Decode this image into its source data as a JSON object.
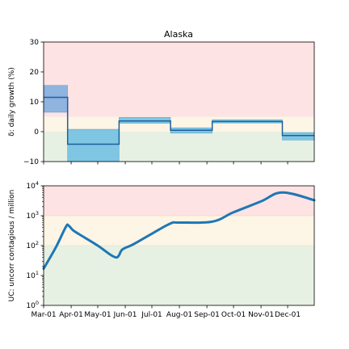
{
  "colors": {
    "band_red": "#fde3e3",
    "band_yellow": "#fdf5e6",
    "band_green": "#e7f1e3",
    "line": "#1f77b4",
    "interval_fill": "#7ec6e2",
    "interval_edge": "#3b83c4"
  },
  "chart_data": [
    {
      "type": "line",
      "title": "Alaska",
      "ylabel": "δ: daily growth (%)",
      "ylim": [
        -10,
        30
      ],
      "yticks": [
        -10,
        0,
        10,
        20,
        30
      ],
      "ytick_labels": [
        "−10",
        "0",
        "10",
        "20",
        "30"
      ],
      "bands": [
        {
          "from": 5,
          "to": 30,
          "color": "band_red"
        },
        {
          "from": 0,
          "to": 5,
          "color": "band_yellow"
        },
        {
          "from": -10,
          "to": 0,
          "color": "band_green"
        }
      ],
      "x_domain": [
        "2020-03-01",
        "2020-12-31"
      ],
      "segments": [
        {
          "x0": "2020-03-01",
          "x1": "2020-03-28",
          "value": 11.5,
          "low": 6.5,
          "high": 15.5
        },
        {
          "x0": "2020-03-28",
          "x1": "2020-05-25",
          "value": -4.2,
          "low": -10,
          "high": 0.8
        },
        {
          "x0": "2020-05-25",
          "x1": "2020-07-22",
          "value": 3.6,
          "low": 2.8,
          "high": 4.8
        },
        {
          "x0": "2020-07-22",
          "x1": "2020-09-07",
          "value": 0.5,
          "low": -0.5,
          "high": 1.3
        },
        {
          "x0": "2020-09-07",
          "x1": "2020-11-25",
          "value": 3.4,
          "low": 2.9,
          "high": 4.0
        },
        {
          "x0": "2020-11-25",
          "x1": "2020-12-31",
          "value": -1.3,
          "low": -2.8,
          "high": -0.3
        }
      ]
    },
    {
      "type": "line",
      "scale": "log",
      "ylabel": "UC: uncorr contagious / million",
      "ylim": [
        1,
        10000
      ],
      "yticks": [
        1,
        10,
        100,
        1000,
        10000
      ],
      "ytick_labels": [
        [
          "10",
          "0"
        ],
        [
          "10",
          "1"
        ],
        [
          "10",
          "2"
        ],
        [
          "10",
          "3"
        ],
        [
          "10",
          "4"
        ]
      ],
      "bands": [
        {
          "from": 1000,
          "to": 10000,
          "color": "band_red"
        },
        {
          "from": 100,
          "to": 1000,
          "color": "band_yellow"
        },
        {
          "from": 1,
          "to": 100,
          "color": "band_green"
        }
      ],
      "x_domain": [
        "2020-03-01",
        "2020-12-31"
      ],
      "xticks": [
        "2020-03-01",
        "2020-04-01",
        "2020-05-01",
        "2020-06-01",
        "2020-07-01",
        "2020-08-01",
        "2020-09-01",
        "2020-10-01",
        "2020-11-01",
        "2020-12-01"
      ],
      "xtick_labels": [
        "Mar-01",
        "Apr-01",
        "May-01",
        "Jun-01",
        "Jul-01",
        "Aug-01",
        "Sep-01",
        "Oct-01",
        "Nov-01",
        "Dec-01"
      ],
      "series": [
        {
          "x": [
            "2020-03-01",
            "2020-03-15",
            "2020-03-26",
            "2020-03-29",
            "2020-04-03",
            "2020-04-10",
            "2020-05-01",
            "2020-05-15",
            "2020-05-22",
            "2020-05-25",
            "2020-05-29",
            "2020-06-10",
            "2020-07-01",
            "2020-07-22",
            "2020-08-01",
            "2020-09-07",
            "2020-10-01",
            "2020-11-01",
            "2020-11-25",
            "2020-12-31"
          ],
          "y": [
            17,
            90,
            420,
            470,
            330,
            240,
            100,
            50,
            40,
            48,
            75,
            110,
            250,
            550,
            590,
            630,
            1300,
            3000,
            6000,
            3300
          ]
        }
      ]
    }
  ]
}
